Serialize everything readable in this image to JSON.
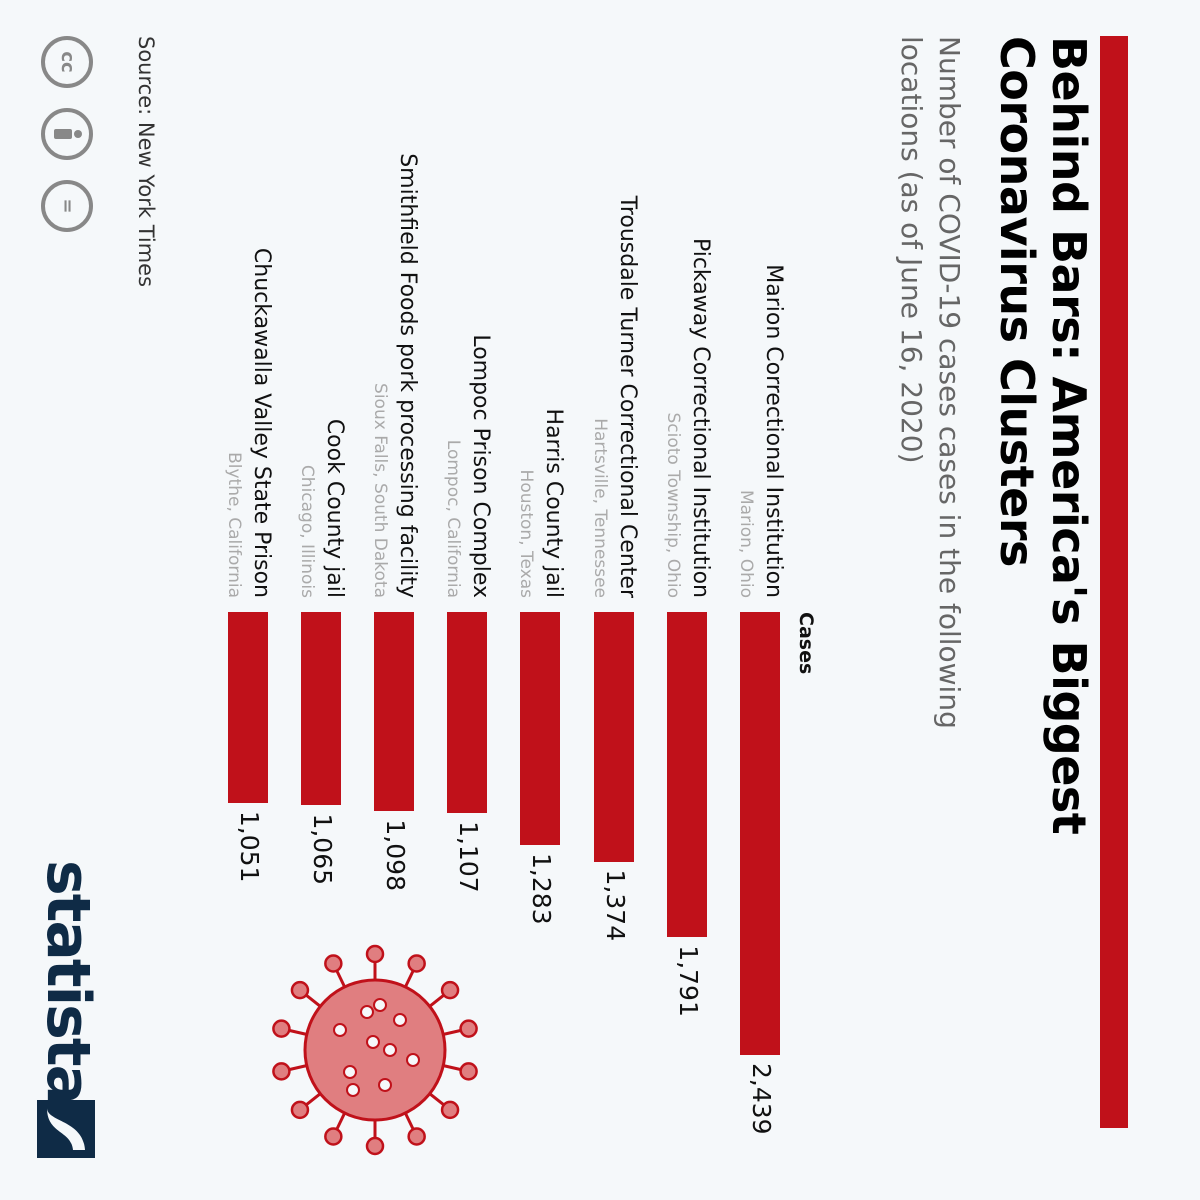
{
  "header": {
    "title": "Behind Bars: America's Biggest Coronavirus Clusters",
    "subtitle": "Number of COVID-19 cases cases in the following locations (as of June 16, 2020)"
  },
  "colors": {
    "accent": "#c0111a",
    "bar": "#c0111a",
    "brand": "#0f2b46",
    "virus": "#e07e80"
  },
  "chart_data": {
    "type": "bar",
    "orientation": "horizontal",
    "column_header": "Cases",
    "categories": [
      "Marion Correctional Institution",
      "Pickaway Correctional Institution",
      "Trousdale Turner Correctional Center",
      "Harris County jail",
      "Lompoc Prison Complex",
      "Smithfield Foods pork processing facility",
      "Cook County jail",
      "Chuckawalla Valley State Prison"
    ],
    "locations": [
      "Marion, Ohio",
      "Scioto Township, Ohio",
      "Hartsville, Tennessee",
      "Houston, Texas",
      "Lompoc, California",
      "Sioux Falls, South Dakota",
      "Chicago, Illinois",
      "Blythe, California"
    ],
    "values": [
      2439,
      1791,
      1374,
      1283,
      1107,
      1098,
      1065,
      1051
    ],
    "value_labels": [
      "2,439",
      "1,791",
      "1,374",
      "1,283",
      "1,107",
      "1,098",
      "1,065",
      "1,051"
    ],
    "xlim": [
      0,
      2439
    ]
  },
  "footer": {
    "source": "Source: New York Times",
    "cc_icons": [
      "cc-icon",
      "attribution-icon",
      "no-derivatives-icon"
    ],
    "cc_label": "cc",
    "nd_label": "=",
    "brand_name": "statista"
  }
}
